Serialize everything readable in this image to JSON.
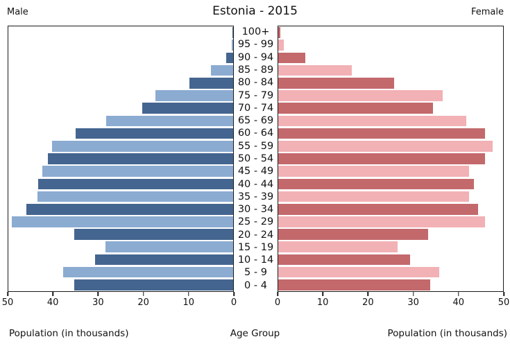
{
  "header": {
    "male_label": "Male",
    "title": "Estonia - 2015",
    "female_label": "Female"
  },
  "axis": {
    "left_caption": "Population (in thousands)",
    "center_caption": "Age Group",
    "right_caption": "Population (in thousands)"
  },
  "chart_data": {
    "type": "bar",
    "subtype": "population-pyramid",
    "title": "Estonia - 2015",
    "xlabel": "Population (in thousands)",
    "center_label": "Age Group",
    "xlim": [
      0,
      50
    ],
    "ticks": [
      0,
      10,
      20,
      30,
      40,
      50
    ],
    "grid": false,
    "categories_order": "top-to-bottom",
    "categories": [
      "100+",
      "95 - 99",
      "90 - 94",
      "85 - 89",
      "80 - 84",
      "75 - 79",
      "70 - 74",
      "65 - 69",
      "60 - 64",
      "55 - 59",
      "50 - 54",
      "45 - 49",
      "40 - 44",
      "35 - 39",
      "30 - 34",
      "25 - 29",
      "20 - 24",
      "15 - 19",
      "10 - 14",
      "5 - 9",
      "0 - 4"
    ],
    "series": [
      {
        "name": "Male",
        "side": "left",
        "values": [
          0.1,
          0.3,
          1.5,
          5.0,
          9.7,
          17.3,
          20.2,
          28.2,
          35.0,
          40.3,
          41.2,
          42.4,
          43.4,
          43.5,
          46.0,
          49.3,
          35.3,
          28.4,
          30.7,
          37.8,
          35.3
        ]
      },
      {
        "name": "Female",
        "side": "right",
        "values": [
          0.4,
          1.3,
          6.0,
          16.3,
          25.7,
          36.6,
          34.4,
          41.8,
          46.0,
          47.7,
          46.0,
          42.4,
          43.5,
          42.4,
          44.5,
          46.0,
          33.3,
          26.6,
          29.3,
          35.8,
          33.8
        ]
      }
    ],
    "colors": {
      "male_dark": "#44658F",
      "male_light": "#8BABD1",
      "female_dark": "#C3696C",
      "female_light": "#F2B1B5",
      "axis": "#1a1a1a",
      "background": "#ffffff"
    },
    "color_pattern": "rows alternate dark/light starting with dark at 100+"
  }
}
